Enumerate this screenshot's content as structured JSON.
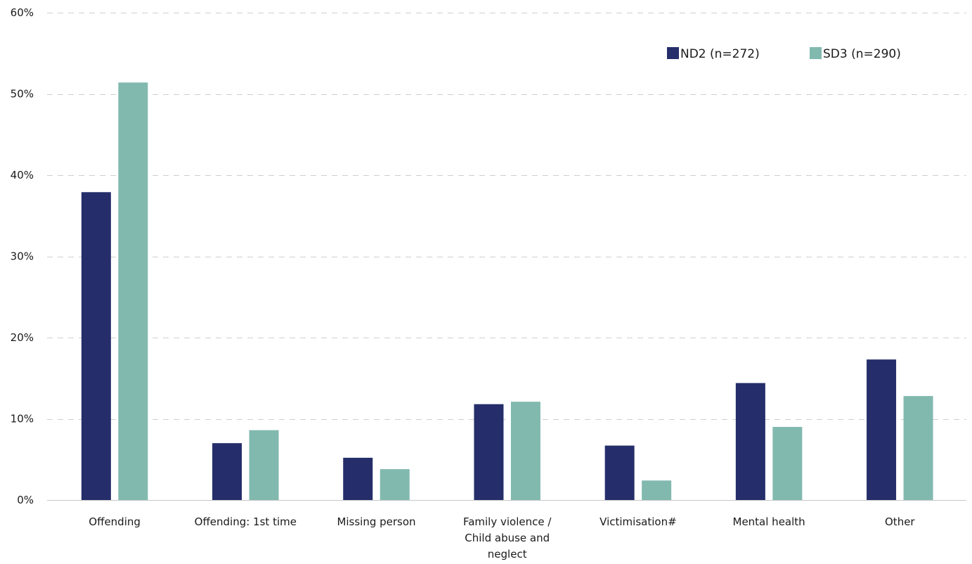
{
  "chart_data": {
    "type": "bar",
    "title": "",
    "xlabel": "",
    "ylabel": "",
    "ylim": [
      0,
      0.6
    ],
    "y_ticks": [
      0,
      0.1,
      0.2,
      0.3,
      0.4,
      0.5,
      0.6
    ],
    "y_tick_labels": [
      "0%",
      "10%",
      "20%",
      "30%",
      "40%",
      "50%",
      "60%"
    ],
    "grid": true,
    "legend_position": "top-right",
    "categories": [
      [
        "Offending"
      ],
      [
        "Offending: 1st time"
      ],
      [
        "Missing person"
      ],
      [
        "Family violence /",
        "Child abuse and",
        "neglect"
      ],
      [
        "Victimisation#"
      ],
      [
        "Mental health"
      ],
      [
        "Other"
      ]
    ],
    "series": [
      {
        "name": "ND2 (n=272)",
        "color": "#252E6A",
        "values": [
          0.379,
          0.07,
          0.052,
          0.118,
          0.067,
          0.144,
          0.173
        ]
      },
      {
        "name": "SD3 (n=290)",
        "color": "#82B9AF",
        "values": [
          0.514,
          0.086,
          0.038,
          0.121,
          0.024,
          0.09,
          0.128
        ]
      }
    ]
  }
}
